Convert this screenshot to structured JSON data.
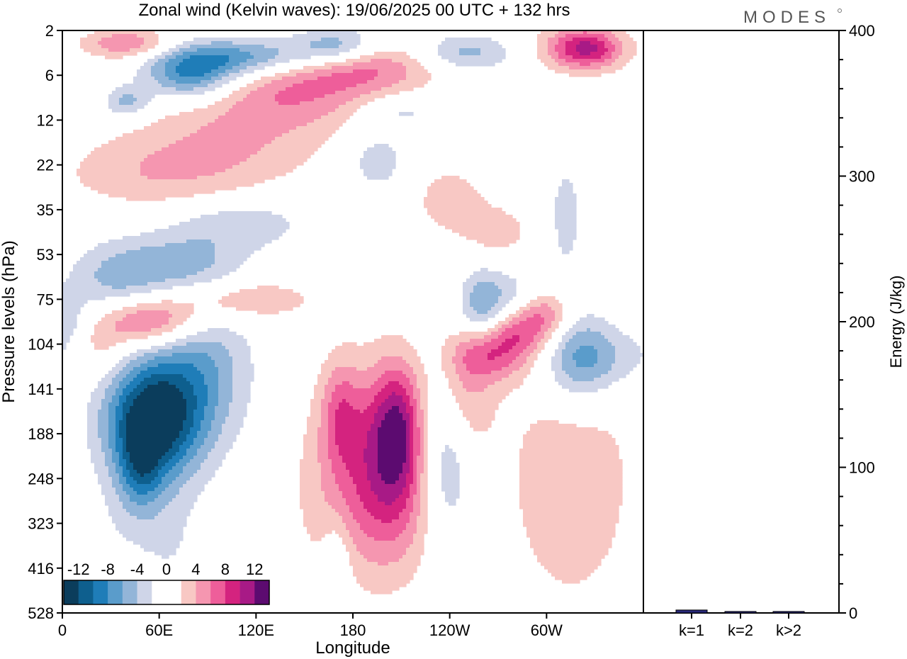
{
  "title": "Zonal wind (Kelvin waves):  19/06/2025  00 UTC  + 132 hrs",
  "logo": "MODES",
  "colors": {
    "neg": [
      "#0b3d5c",
      "#0e5f8e",
      "#1f7db8",
      "#5a9ccb",
      "#93b5d8",
      "#cfd5e8"
    ],
    "zero": "#ffffff",
    "pos": [
      "#f8c8c4",
      "#f596b0",
      "#ee5e9a",
      "#d4237f",
      "#a81a86",
      "#5c0b70"
    ],
    "bar_fill": "#2a2a7a"
  },
  "chart_data": [
    {
      "type": "heatmap",
      "title": "Zonal wind (Kelvin waves):  19/06/2025  00 UTC  + 132 hrs",
      "xlabel": "Longitude",
      "ylabel": "Pressure levels (hPa)",
      "x_ticks": [
        "0",
        "60E",
        "120E",
        "180",
        "120W",
        "60W"
      ],
      "x_tick_values": [
        0,
        60,
        120,
        180,
        240,
        300
      ],
      "xlim": [
        0,
        360
      ],
      "y_ticks": [
        "2",
        "6",
        "12",
        "22",
        "35",
        "53",
        "75",
        "104",
        "141",
        "188",
        "248",
        "323",
        "416",
        "528"
      ],
      "y_scale": "pressure levels",
      "colorbar_labels": [
        "-12",
        "-8",
        "-4",
        "0",
        "4",
        "8",
        "12"
      ],
      "colorbar_levels": [
        -12,
        -10,
        -8,
        -6,
        -4,
        -2,
        0,
        2,
        4,
        6,
        8,
        10,
        12,
        14
      ],
      "features": [
        {
          "name": "strong easterly core",
          "lon": 50,
          "level": "141-188",
          "value": -12
        },
        {
          "name": "westerly core",
          "lon": 190,
          "level": "141-188",
          "value": 6
        },
        {
          "name": "westerly core",
          "lon": 210,
          "level": "141",
          "value": 8
        },
        {
          "name": "westerly band",
          "lon": 270,
          "level": "104-141",
          "value": 8
        },
        {
          "name": "westerly band",
          "lon": 50,
          "level": "104",
          "value": 8
        },
        {
          "name": "easterly band",
          "lon": 80,
          "level": "6",
          "value": -8
        },
        {
          "name": "westerly band",
          "lon": 180,
          "level": "6",
          "value": 6
        }
      ]
    },
    {
      "type": "bar",
      "title": "",
      "xlabel": "",
      "ylabel": "Energy (J/kg)",
      "categories": [
        "k=1",
        "k=2",
        "k>2"
      ],
      "values": [
        2,
        1,
        1
      ],
      "ylim": [
        0,
        400
      ],
      "y_ticks": [
        "0",
        "100",
        "200",
        "300",
        "400"
      ]
    }
  ]
}
